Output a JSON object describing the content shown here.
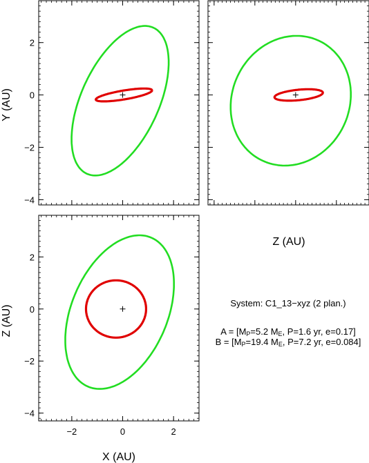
{
  "chart_data": [
    {
      "type": "line",
      "panel": "top-left",
      "xlabel": "",
      "ylabel": "Y (AU)",
      "xlim": [
        -3.3,
        3.0
      ],
      "ylim": [
        -4.2,
        3.6
      ],
      "x_ticks": [
        -2,
        0,
        2
      ],
      "y_ticks": [
        -4,
        -2,
        0,
        2
      ],
      "x_tick_labels": [
        "",
        "",
        ""
      ],
      "y_tick_labels": [
        "−4",
        "−2",
        "0",
        "2"
      ],
      "series": [
        {
          "orbit": "A",
          "color": "#e00000",
          "ellipse": {
            "cx": 0.05,
            "cy": 0.0,
            "a": 1.12,
            "b": 0.17,
            "angle_deg": 9.2
          }
        },
        {
          "orbit": "B",
          "color": "#22dd22",
          "ellipse": {
            "cx": -0.1,
            "cy": -0.22,
            "a": 3.08,
            "b": 1.52,
            "angle_deg": 64.5
          }
        }
      ],
      "center_marker": {
        "x": 0,
        "y": 0,
        "symbol": "+"
      }
    },
    {
      "type": "line",
      "panel": "top-right",
      "xlabel": "Z (AU)",
      "ylabel": "",
      "xlim": [
        -4.3,
        3.6
      ],
      "ylim": [
        -4.2,
        3.6
      ],
      "x_ticks": [
        -4,
        -2,
        0,
        2
      ],
      "y_ticks": [
        -4,
        -2,
        0,
        2
      ],
      "x_tick_labels": [
        "",
        "",
        "",
        ""
      ],
      "y_tick_labels": [
        "",
        "",
        "",
        ""
      ],
      "series": [
        {
          "orbit": "A",
          "color": "#e00000",
          "ellipse": {
            "cx": 0.15,
            "cy": 0.0,
            "a": 1.19,
            "b": 0.2,
            "angle_deg": 4.3
          }
        },
        {
          "orbit": "B",
          "color": "#22dd22",
          "ellipse": {
            "cx": -0.24,
            "cy": -0.22,
            "a": 2.98,
            "b": 2.44,
            "angle_deg": 14.5
          }
        }
      ],
      "center_marker": {
        "x": 0,
        "y": 0,
        "symbol": "+"
      }
    },
    {
      "type": "line",
      "panel": "bottom-left",
      "xlabel": "X (AU)",
      "ylabel": "Z (AU)",
      "xlim": [
        -3.3,
        3.0
      ],
      "ylim": [
        -4.3,
        3.6
      ],
      "x_ticks": [
        -2,
        0,
        2
      ],
      "y_ticks": [
        -4,
        -2,
        0,
        2
      ],
      "x_tick_labels": [
        "−2",
        "0",
        "2"
      ],
      "y_tick_labels": [
        "−4",
        "−2",
        "0",
        "2"
      ],
      "series": [
        {
          "orbit": "A",
          "color": "#e00000",
          "ellipse": {
            "cx": -0.26,
            "cy": 0.0,
            "a": 1.18,
            "b": 1.1,
            "angle_deg": 0
          }
        },
        {
          "orbit": "B",
          "color": "#22dd22",
          "ellipse": {
            "cx": -0.12,
            "cy": -0.12,
            "a": 3.12,
            "b": 1.88,
            "angle_deg": 66
          }
        }
      ],
      "center_marker": {
        "x": 0,
        "y": 0,
        "symbol": "+"
      }
    }
  ],
  "info": {
    "system": "System: C1_13−xyz (2 plan.)",
    "planets": [
      {
        "prefix": "A = [M",
        "mass_sub": "P",
        "mass": "=5.2 M",
        "unit_sub": "E",
        "rest": ", P=1.6 yr, e=0.17]"
      },
      {
        "prefix": "B = [M",
        "mass_sub": "P",
        "mass": "=19.4 M",
        "unit_sub": "E",
        "rest": ", P=7.2 yr, e=0.084]"
      }
    ]
  }
}
